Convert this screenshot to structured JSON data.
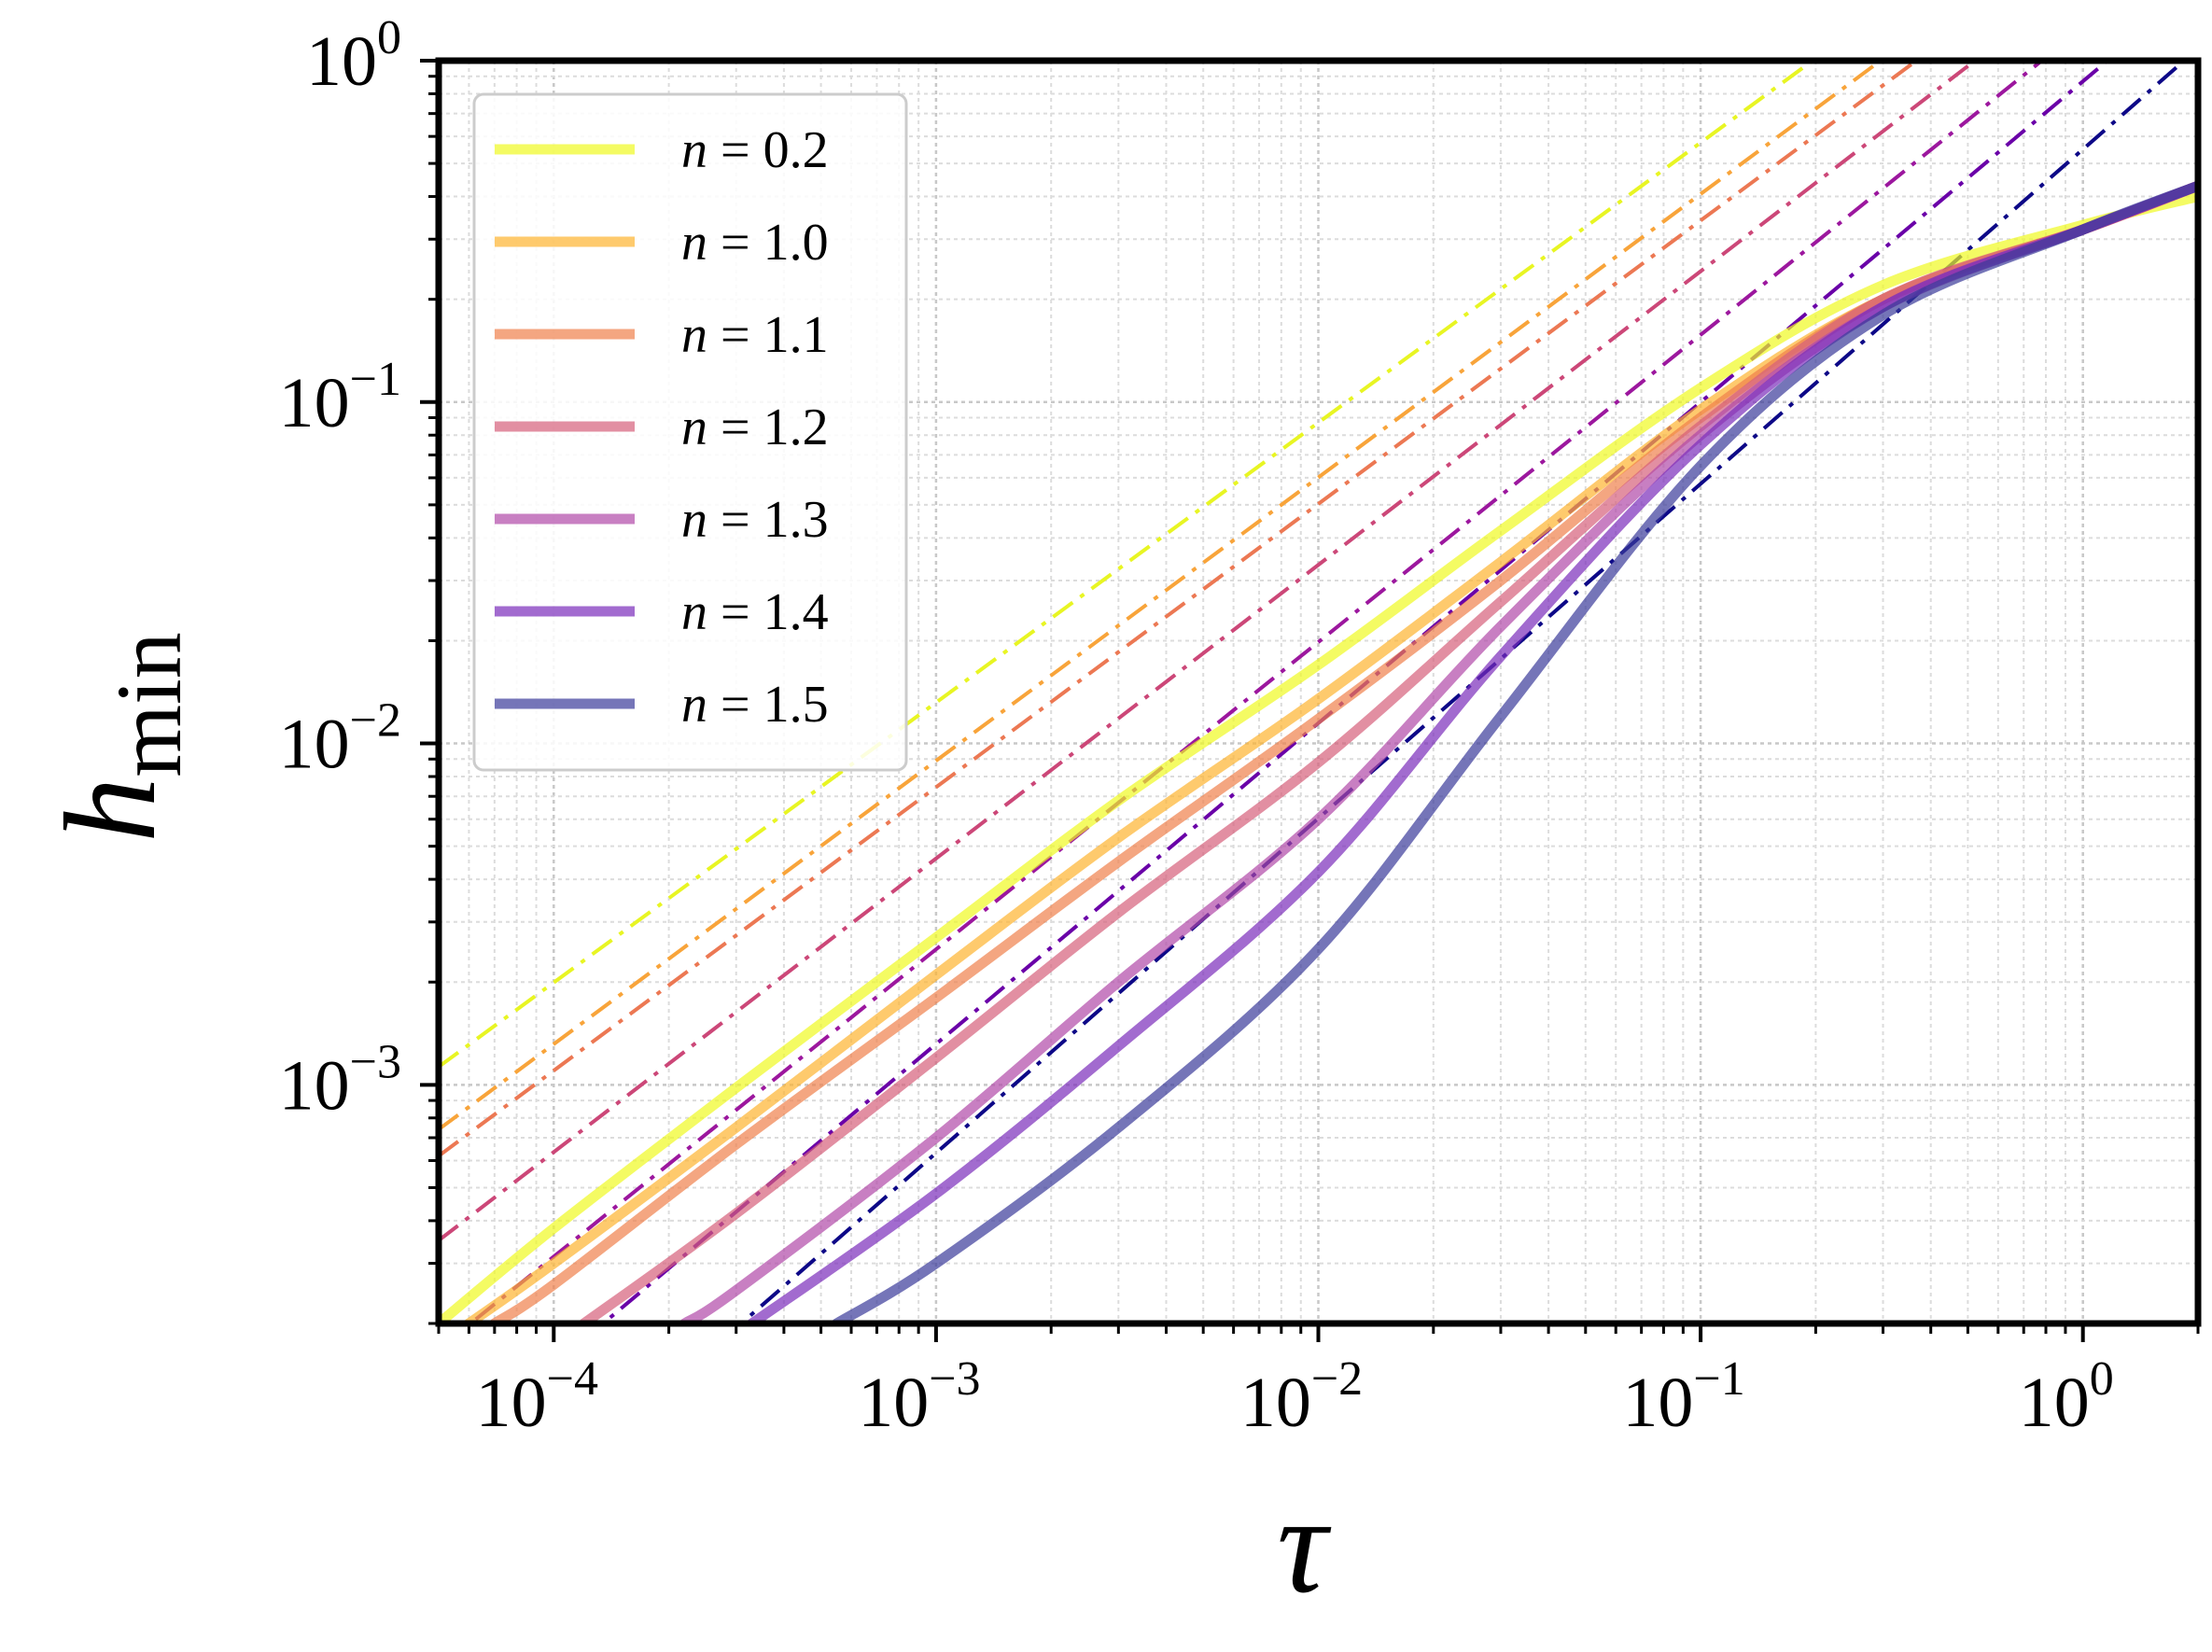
{
  "chart_data": {
    "type": "line",
    "x_scale": "log",
    "y_scale": "log",
    "xlim": [
      5e-05,
      2.0
    ],
    "ylim": [
      0.0002,
      1.0
    ],
    "xlabel": "τ",
    "ylabel_main": "h",
    "ylabel_sub": "min",
    "x_ticks": [
      {
        "value": 0.0001,
        "base": "10",
        "exp": "−4"
      },
      {
        "value": 0.001,
        "base": "10",
        "exp": "−3"
      },
      {
        "value": 0.01,
        "base": "10",
        "exp": "−2"
      },
      {
        "value": 0.1,
        "base": "10",
        "exp": "−1"
      },
      {
        "value": 1,
        "base": "10",
        "exp": "0"
      }
    ],
    "y_ticks": [
      {
        "value": 1,
        "base": "10",
        "exp": "0"
      },
      {
        "value": 0.1,
        "base": "10",
        "exp": "−1"
      },
      {
        "value": 0.01,
        "base": "10",
        "exp": "−2"
      },
      {
        "value": 0.001,
        "base": "10",
        "exp": "−3"
      }
    ],
    "grid": true,
    "legend_position": "top-left",
    "series": [
      {
        "name": "n = 0.2",
        "n_label": "n",
        "value_label": " = 0.2",
        "color": "#f0f921",
        "fit_color": "#e8f523",
        "points": [
          [
            5e-05,
            0.0002
          ],
          [
            0.0001,
            0.00038
          ],
          [
            0.0003,
            0.00098
          ],
          [
            0.001,
            0.0027
          ],
          [
            0.003,
            0.0068
          ],
          [
            0.01,
            0.017
          ],
          [
            0.03,
            0.042
          ],
          [
            0.1,
            0.11
          ],
          [
            0.3,
            0.22
          ],
          [
            1,
            0.33
          ],
          [
            2,
            0.4
          ]
        ],
        "fit": {
          "C": 3.8,
          "alpha": 0.82
        }
      },
      {
        "name": "n = 1.0",
        "n_label": "n",
        "value_label": " = 1.0",
        "color": "#fdb42f",
        "fit_color": "#f8a43a",
        "points": [
          [
            6e-05,
            0.0002
          ],
          [
            0.0001,
            0.0003
          ],
          [
            0.0003,
            0.00075
          ],
          [
            0.001,
            0.0021
          ],
          [
            0.003,
            0.0053
          ],
          [
            0.01,
            0.0135
          ],
          [
            0.03,
            0.034
          ],
          [
            0.1,
            0.095
          ],
          [
            0.3,
            0.2
          ],
          [
            1,
            0.32
          ],
          [
            2,
            0.43
          ]
        ],
        "fit": {
          "C": 2.75,
          "alpha": 0.83
        }
      },
      {
        "name": "n = 1.1",
        "n_label": "n",
        "value_label": " = 1.1",
        "color": "#f0804c",
        "fit_color": "#ec7853",
        "points": [
          [
            7e-05,
            0.0002
          ],
          [
            0.0001,
            0.00026
          ],
          [
            0.0003,
            0.00067
          ],
          [
            0.001,
            0.0018
          ],
          [
            0.003,
            0.0045
          ],
          [
            0.01,
            0.0118
          ],
          [
            0.03,
            0.03
          ],
          [
            0.1,
            0.09
          ],
          [
            0.3,
            0.2
          ],
          [
            1,
            0.32
          ],
          [
            2,
            0.43
          ]
        ],
        "fit": {
          "C": 2.3,
          "alpha": 0.83
        }
      },
      {
        "name": "n = 1.2",
        "n_label": "n",
        "value_label": " = 1.2",
        "color": "#d5607a",
        "fit_color": "#cc4778",
        "points": [
          [
            0.00012,
            0.0002
          ],
          [
            0.0003,
            0.00042
          ],
          [
            0.001,
            0.0012
          ],
          [
            0.003,
            0.0032
          ],
          [
            0.01,
            0.0088
          ],
          [
            0.03,
            0.026
          ],
          [
            0.1,
            0.085
          ],
          [
            0.3,
            0.2
          ],
          [
            1,
            0.32
          ],
          [
            2,
            0.43
          ]
        ],
        "fit": {
          "C": 1.75,
          "alpha": 0.86
        }
      },
      {
        "name": "n = 1.3",
        "n_label": "n",
        "value_label": " = 1.3",
        "color": "#b048a8",
        "fit_color": "#9c179e",
        "points": [
          [
            0.00022,
            0.0002
          ],
          [
            0.0003,
            0.00025
          ],
          [
            0.001,
            0.0007
          ],
          [
            0.003,
            0.002
          ],
          [
            0.01,
            0.006
          ],
          [
            0.03,
            0.022
          ],
          [
            0.1,
            0.08
          ],
          [
            0.3,
            0.19
          ],
          [
            1,
            0.32
          ],
          [
            2,
            0.43
          ]
        ],
        "fit": {
          "C": 1.25,
          "alpha": 0.9
        }
      },
      {
        "name": "n = 1.4",
        "n_label": "n",
        "value_label": " = 1.4",
        "color": "#7a2cba",
        "fit_color": "#6a00a8",
        "points": [
          [
            0.00033,
            0.0002
          ],
          [
            0.001,
            0.00048
          ],
          [
            0.003,
            0.0013
          ],
          [
            0.01,
            0.0042
          ],
          [
            0.03,
            0.018
          ],
          [
            0.1,
            0.075
          ],
          [
            0.3,
            0.19
          ],
          [
            1,
            0.32
          ],
          [
            2,
            0.43
          ]
        ],
        "fit": {
          "C": 0.87,
          "alpha": 0.94
        }
      },
      {
        "name": "n = 1.5",
        "n_label": "n",
        "value_label": " = 1.5",
        "color": "#3a3a9a",
        "fit_color": "#0d0887",
        "points": [
          [
            0.00055,
            0.0002
          ],
          [
            0.001,
            0.0003
          ],
          [
            0.003,
            0.00075
          ],
          [
            0.01,
            0.0025
          ],
          [
            0.03,
            0.012
          ],
          [
            0.1,
            0.065
          ],
          [
            0.3,
            0.18
          ],
          [
            1,
            0.32
          ],
          [
            2,
            0.43
          ]
        ],
        "fit": {
          "C": 0.55,
          "alpha": 0.98
        }
      }
    ]
  }
}
